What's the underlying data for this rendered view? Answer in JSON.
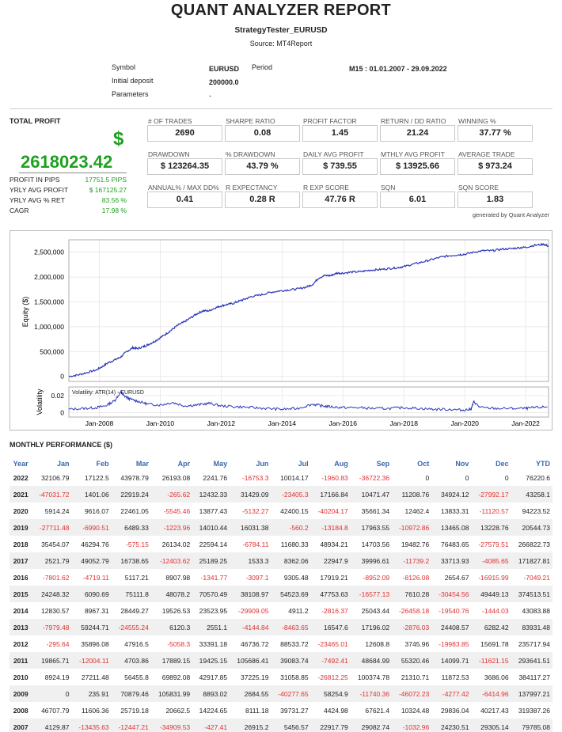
{
  "report": {
    "title": "QUANT ANALYZER REPORT",
    "subtitle": "StrategyTester_EURUSD",
    "source": "Source: MT4Report"
  },
  "info": {
    "symbol_label": "Symbol",
    "symbol_value": "EURUSD",
    "period_label": "Period",
    "period_value": "M15 : 01.01.2007 - 29.09.2022",
    "deposit_label": "Initial deposit",
    "deposit_value": "200000.0",
    "parameters_label": "Parameters",
    "parameters_value": "-"
  },
  "total_profit": {
    "label": "TOTAL PROFIT",
    "currency_symbol": "$",
    "value": "2618023.42",
    "rows": [
      {
        "label": "PROFIT IN PIPS",
        "value": "17751.5 PIPS"
      },
      {
        "label": "YRLY AVG PROFIT",
        "value": "$ 167125.27"
      },
      {
        "label": "YRLY AVG % RET",
        "value": "83.56 %"
      },
      {
        "label": "CAGR",
        "value": "17.98 %"
      }
    ]
  },
  "metrics": [
    {
      "label": "# OF TRADES",
      "value": "2690"
    },
    {
      "label": "SHARPE RATIO",
      "value": "0.08"
    },
    {
      "label": "PROFIT FACTOR",
      "value": "1.45"
    },
    {
      "label": "RETURN / DD RATIO",
      "value": "21.24"
    },
    {
      "label": "WINNING %",
      "value": "37.77 %"
    },
    {
      "label": "DRAWDOWN",
      "value": "$ 123264.35"
    },
    {
      "label": "% DRAWDOWN",
      "value": "43.79 %"
    },
    {
      "label": "DAILY AVG PROFIT",
      "value": "$ 739.55"
    },
    {
      "label": "MTHLY AVG PROFIT",
      "value": "$ 13925.66"
    },
    {
      "label": "AVERAGE TRADE",
      "value": "$ 973.24"
    },
    {
      "label": "ANNUAL% / MAX DD%",
      "value": "0.41"
    },
    {
      "label": "R EXPECTANCY",
      "value": "0.28 R"
    },
    {
      "label": "R EXP SCORE",
      "value": "47.76 R"
    },
    {
      "label": "SQN",
      "value": "6.01"
    },
    {
      "label": "SQN SCORE",
      "value": "1.83"
    }
  ],
  "generated_by": "generated by Quant Analyzer",
  "chart_data": [
    {
      "type": "line",
      "name": "equity",
      "ylabel": "Equity ($)",
      "ylim": [
        -100000,
        2750000
      ],
      "y_ticks": [
        "0",
        "500,000",
        "1,000,000",
        "1,500,000",
        "2,000,000",
        "2,500,000"
      ],
      "y_tick_values": [
        0,
        500000,
        1000000,
        1500000,
        2000000,
        2500000
      ],
      "xlim": [
        2007.0,
        2022.75
      ],
      "x_ticks": [
        "Jan-2008",
        "Jan-2010",
        "Jan-2012",
        "Jan-2014",
        "Jan-2016",
        "Jan-2018",
        "Jan-2020",
        "Jan-2022"
      ],
      "x_tick_values": [
        2008,
        2010,
        2012,
        2014,
        2016,
        2018,
        2020,
        2022
      ],
      "color": "#2a35b8",
      "grid": true,
      "x": [
        2007.0,
        2007.3,
        2007.6,
        2007.9,
        2008.1,
        2008.3,
        2008.5,
        2008.7,
        2008.9,
        2009.1,
        2009.25,
        2009.45,
        2009.6,
        2009.8,
        2010.0,
        2010.2,
        2010.4,
        2010.6,
        2010.8,
        2011.0,
        2011.2,
        2011.4,
        2011.6,
        2011.8,
        2012.0,
        2012.2,
        2012.4,
        2012.6,
        2012.8,
        2013.0,
        2013.3,
        2013.6,
        2013.9,
        2014.2,
        2014.5,
        2014.8,
        2015.0,
        2015.2,
        2015.4,
        2015.6,
        2015.8,
        2016.0,
        2016.3,
        2016.6,
        2016.9,
        2017.2,
        2017.5,
        2017.8,
        2018.0,
        2018.3,
        2018.6,
        2018.9,
        2019.2,
        2019.5,
        2019.8,
        2020.0,
        2020.3,
        2020.6,
        2020.9,
        2021.2,
        2021.5,
        2021.8,
        2022.0,
        2022.3,
        2022.6,
        2022.75
      ],
      "y": [
        0,
        30000,
        80000,
        130000,
        200000,
        280000,
        330000,
        390000,
        500000,
        580000,
        560000,
        600000,
        640000,
        700000,
        780000,
        860000,
        950000,
        1040000,
        1100000,
        1180000,
        1260000,
        1320000,
        1320000,
        1380000,
        1420000,
        1450000,
        1470000,
        1520000,
        1560000,
        1610000,
        1640000,
        1690000,
        1720000,
        1740000,
        1760000,
        1800000,
        1850000,
        1980000,
        2030000,
        2030000,
        2080000,
        2080000,
        2100000,
        2110000,
        2140000,
        2150000,
        2170000,
        2190000,
        2210000,
        2260000,
        2300000,
        2350000,
        2400000,
        2430000,
        2450000,
        2460000,
        2500000,
        2530000,
        2530000,
        2560000,
        2570000,
        2590000,
        2600000,
        2640000,
        2660000,
        2620000
      ]
    },
    {
      "type": "line",
      "name": "volatility",
      "ylabel": "Volatility",
      "legend": "Volatility: ATR(14) - EURUSD",
      "ylim": [
        -0.005,
        0.03
      ],
      "y_ticks": [
        "0",
        "0.02"
      ],
      "y_tick_values": [
        0,
        0.02
      ],
      "xlim": [
        2007.0,
        2022.75
      ],
      "color": "#2a35b8",
      "x": [
        2007.0,
        2007.5,
        2007.9,
        2008.2,
        2008.5,
        2008.7,
        2008.8,
        2009.0,
        2009.3,
        2009.6,
        2010.0,
        2010.4,
        2010.8,
        2011.2,
        2011.6,
        2012.0,
        2012.5,
        2013.0,
        2013.5,
        2014.0,
        2014.5,
        2015.0,
        2015.3,
        2015.6,
        2016.0,
        2016.5,
        2017.0,
        2017.5,
        2018.0,
        2018.5,
        2019.0,
        2019.5,
        2019.9,
        2020.2,
        2020.3,
        2020.5,
        2021.0,
        2021.5,
        2022.0,
        2022.3,
        2022.75
      ],
      "y": [
        0.004,
        0.005,
        0.006,
        0.008,
        0.014,
        0.024,
        0.02,
        0.016,
        0.013,
        0.01,
        0.009,
        0.012,
        0.008,
        0.009,
        0.011,
        0.008,
        0.007,
        0.006,
        0.005,
        0.004,
        0.005,
        0.01,
        0.008,
        0.007,
        0.006,
        0.006,
        0.005,
        0.005,
        0.006,
        0.005,
        0.004,
        0.004,
        0.003,
        0.004,
        0.013,
        0.006,
        0.005,
        0.005,
        0.005,
        0.006,
        0.007
      ]
    }
  ],
  "monthly": {
    "title": "MONTHLY PERFORMANCE ($)",
    "headers": [
      "Year",
      "Jan",
      "Feb",
      "Mar",
      "Apr",
      "May",
      "Jun",
      "Jul",
      "Aug",
      "Sep",
      "Oct",
      "Nov",
      "Dec",
      "YTD"
    ],
    "rows": [
      [
        "2022",
        "32106.79",
        "17122.5",
        "43978.79",
        "26193.08",
        "2241.76",
        "-16753.3",
        "10014.17",
        "-1960.83",
        "-36722.36",
        "0",
        "0",
        "0",
        "76220.6"
      ],
      [
        "2021",
        "-47031.72",
        "1401.06",
        "22919.24",
        "-265.62",
        "12432.33",
        "31429.09",
        "-23405.3",
        "17166.84",
        "10471.47",
        "11208.76",
        "34924.12",
        "-27992.17",
        "43258.1"
      ],
      [
        "2020",
        "5914.24",
        "9616.07",
        "22461.05",
        "-5545.46",
        "13877.43",
        "-5132.27",
        "42400.15",
        "-40204.17",
        "35661.34",
        "12462.4",
        "13833.31",
        "-11120.57",
        "94223.52"
      ],
      [
        "2019",
        "-27711.48",
        "-6990.51",
        "6489.33",
        "-1223.96",
        "14010.44",
        "16031.38",
        "-560.2",
        "-13184.8",
        "17963.55",
        "-10972.86",
        "13465.08",
        "13228.76",
        "20544.73"
      ],
      [
        "2018",
        "35454.07",
        "46294.76",
        "-575.15",
        "26134.02",
        "22594.14",
        "-6784.11",
        "11680.33",
        "48934.21",
        "14703.56",
        "19482.76",
        "76483.65",
        "-27579.51",
        "266822.73"
      ],
      [
        "2017",
        "2521.79",
        "49052.79",
        "16738.65",
        "-12403.62",
        "25189.25",
        "1533.3",
        "8362.06",
        "22947.9",
        "39996.61",
        "-11739.2",
        "33713.93",
        "-4085.65",
        "171827.81"
      ],
      [
        "2016",
        "-7801.62",
        "-4719.11",
        "5117.21",
        "8907.98",
        "-1341.77",
        "-3097.1",
        "9305.48",
        "17919.21",
        "-8952.09",
        "-8126.08",
        "2654.67",
        "-16915.99",
        "-7049.21"
      ],
      [
        "2015",
        "24248.32",
        "6090.69",
        "75111.8",
        "48078.2",
        "70570.49",
        "38108.97",
        "54523.69",
        "47753.63",
        "-16577.13",
        "7610.28",
        "-30454.56",
        "49449.13",
        "374513.51"
      ],
      [
        "2014",
        "12830.57",
        "8967.31",
        "28449.27",
        "19526.53",
        "23523.95",
        "-29909.05",
        "4911.2",
        "-2816.37",
        "25043.44",
        "-26458.18",
        "-19540.76",
        "-1444.03",
        "43083.88"
      ],
      [
        "2013",
        "-7979.48",
        "59244.71",
        "-24555.24",
        "6120.3",
        "2551.1",
        "-4144.84",
        "-8463.65",
        "16547.6",
        "17196.02",
        "-2876.03",
        "24408.57",
        "6282.42",
        "83931.48"
      ],
      [
        "2012",
        "-295.64",
        "35896.08",
        "47916.5",
        "-5058.3",
        "33391.18",
        "46736.72",
        "88533.72",
        "-23465.01",
        "12608.8",
        "3745.96",
        "-19983.85",
        "15691.78",
        "235717.94"
      ],
      [
        "2011",
        "19865.71",
        "-12004.11",
        "4703.86",
        "17889.15",
        "19425.15",
        "105686.41",
        "39083.74",
        "-7492.41",
        "48684.99",
        "55320.46",
        "14099.71",
        "-11621.15",
        "293641.51"
      ],
      [
        "2010",
        "8924.19",
        "27211.48",
        "56455.8",
        "69892.08",
        "42917.85",
        "37225.19",
        "31058.85",
        "-26812.25",
        "100374.78",
        "21310.71",
        "11872.53",
        "3686.06",
        "384117.27"
      ],
      [
        "2009",
        "0",
        "235.91",
        "70879.46",
        "105831.99",
        "8893.02",
        "2684.55",
        "-40277.65",
        "58254.9",
        "-11740.36",
        "-46072.23",
        "-4277.42",
        "-6414.96",
        "137997.21"
      ],
      [
        "2008",
        "46707.79",
        "11606.36",
        "25719.18",
        "20662.5",
        "14224.65",
        "8111.18",
        "39731.27",
        "4424.98",
        "67621.4",
        "10324.48",
        "29836.04",
        "40217.43",
        "319387.26"
      ],
      [
        "2007",
        "4129.87",
        "-13435.63",
        "-12447.21",
        "-34909.53",
        "-427.41",
        "26915.2",
        "5456.57",
        "22917.79",
        "29082.74",
        "-1032.96",
        "24230.51",
        "29305.14",
        "79785.08"
      ]
    ]
  }
}
